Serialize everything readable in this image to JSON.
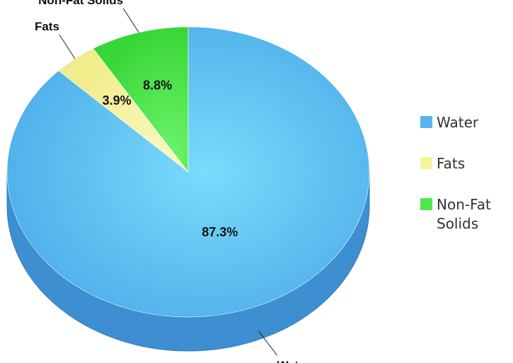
{
  "chart_data": {
    "type": "pie",
    "categories": [
      "Water",
      "Fats",
      "Non-Fat Solids"
    ],
    "values": [
      87.3,
      3.9,
      8.8
    ],
    "value_labels": [
      "87.3%",
      "3.9%",
      "8.8%"
    ],
    "legend_labels": [
      "Water",
      "Fats",
      "Non-Fat Solids"
    ],
    "colors": [
      "#56b4ea",
      "#f6f39e",
      "#4fe84c"
    ],
    "legend_position": "right",
    "style": "3d"
  }
}
